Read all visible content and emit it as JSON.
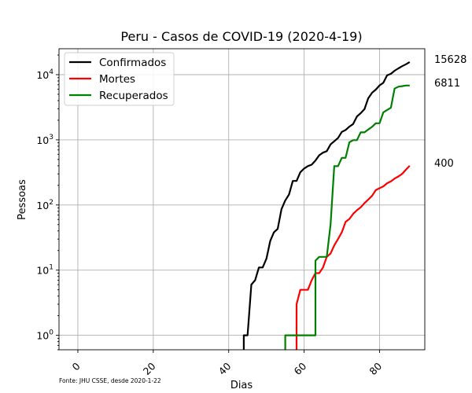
{
  "chart_data": {
    "type": "line",
    "title": "Peru - Casos de COVID-19 (2020-4-19)",
    "xlabel": "Dias",
    "ylabel": "Pessoas",
    "source_note": "Fonte: JHU CSSE, desde 2020-1-22",
    "y_scale": "log",
    "xlim": [
      -5,
      92
    ],
    "ylim": [
      0.6,
      25000
    ],
    "x_ticks": [
      0,
      20,
      40,
      60,
      80
    ],
    "y_ticks": [
      {
        "value": 1,
        "label": "10^0"
      },
      {
        "value": 10,
        "label": "10^1"
      },
      {
        "value": 100,
        "label": "10^2"
      },
      {
        "value": 1000,
        "label": "10^3"
      },
      {
        "value": 10000,
        "label": "10^4"
      }
    ],
    "grid": true,
    "legend_position": "top-left",
    "series": [
      {
        "name": "Confirmados",
        "color": "#000000",
        "end_label": "15628",
        "x": [
          44,
          44,
          45,
          46,
          47,
          48,
          49,
          50,
          51,
          52,
          53,
          54,
          55,
          56,
          57,
          58,
          59,
          60,
          61,
          62,
          63,
          64,
          65,
          66,
          67,
          68,
          69,
          70,
          71,
          72,
          73,
          74,
          75,
          76,
          77,
          78,
          79,
          80,
          81,
          82,
          83,
          84,
          85,
          86,
          87,
          88
        ],
        "y": [
          0.6,
          1,
          1,
          6,
          7,
          11,
          11,
          15,
          28,
          38,
          43,
          86,
          117,
          145,
          234,
          234,
          318,
          363,
          395,
          416,
          480,
          580,
          635,
          671,
          852,
          950,
          1065,
          1323,
          1414,
          1595,
          1746,
          2281,
          2561,
          2954,
          4342,
          5256,
          5897,
          6848,
          7519,
          9784,
          10303,
          11475,
          12491,
          13489,
          14420,
          15628
        ]
      },
      {
        "name": "Mortes",
        "color": "#ff0000",
        "end_label": "400",
        "x": [
          58,
          58,
          59,
          60,
          61,
          62,
          63,
          64,
          65,
          66,
          67,
          68,
          69,
          70,
          71,
          72,
          73,
          74,
          75,
          76,
          77,
          78,
          79,
          80,
          81,
          82,
          83,
          84,
          85,
          86,
          87,
          88
        ],
        "y": [
          0.6,
          3,
          5,
          5,
          5,
          7,
          9,
          9,
          11,
          16,
          18,
          24,
          30,
          38,
          55,
          61,
          73,
          83,
          92,
          107,
          121,
          138,
          169,
          181,
          193,
          216,
          230,
          254,
          274,
          300,
          348,
          400
        ]
      },
      {
        "name": "Recuperados",
        "color": "#008000",
        "end_label": "6811",
        "x": [
          55,
          55,
          56,
          57,
          58,
          59,
          60,
          61,
          62,
          63,
          63,
          64,
          65,
          66,
          67,
          68,
          69,
          70,
          71,
          72,
          73,
          74,
          75,
          76,
          77,
          78,
          79,
          80,
          81,
          82,
          83,
          84,
          85,
          86,
          87,
          88
        ],
        "y": [
          0.6,
          1,
          1,
          1,
          1,
          1,
          1,
          1,
          1,
          1,
          14,
          16,
          16,
          16,
          50,
          394,
          394,
          530,
          530,
          914,
          989,
          989,
          1301,
          1301,
          1438,
          1580,
          1798,
          1798,
          2642,
          2869,
          3108,
          6120,
          6541,
          6664,
          6811,
          6811
        ]
      }
    ]
  }
}
